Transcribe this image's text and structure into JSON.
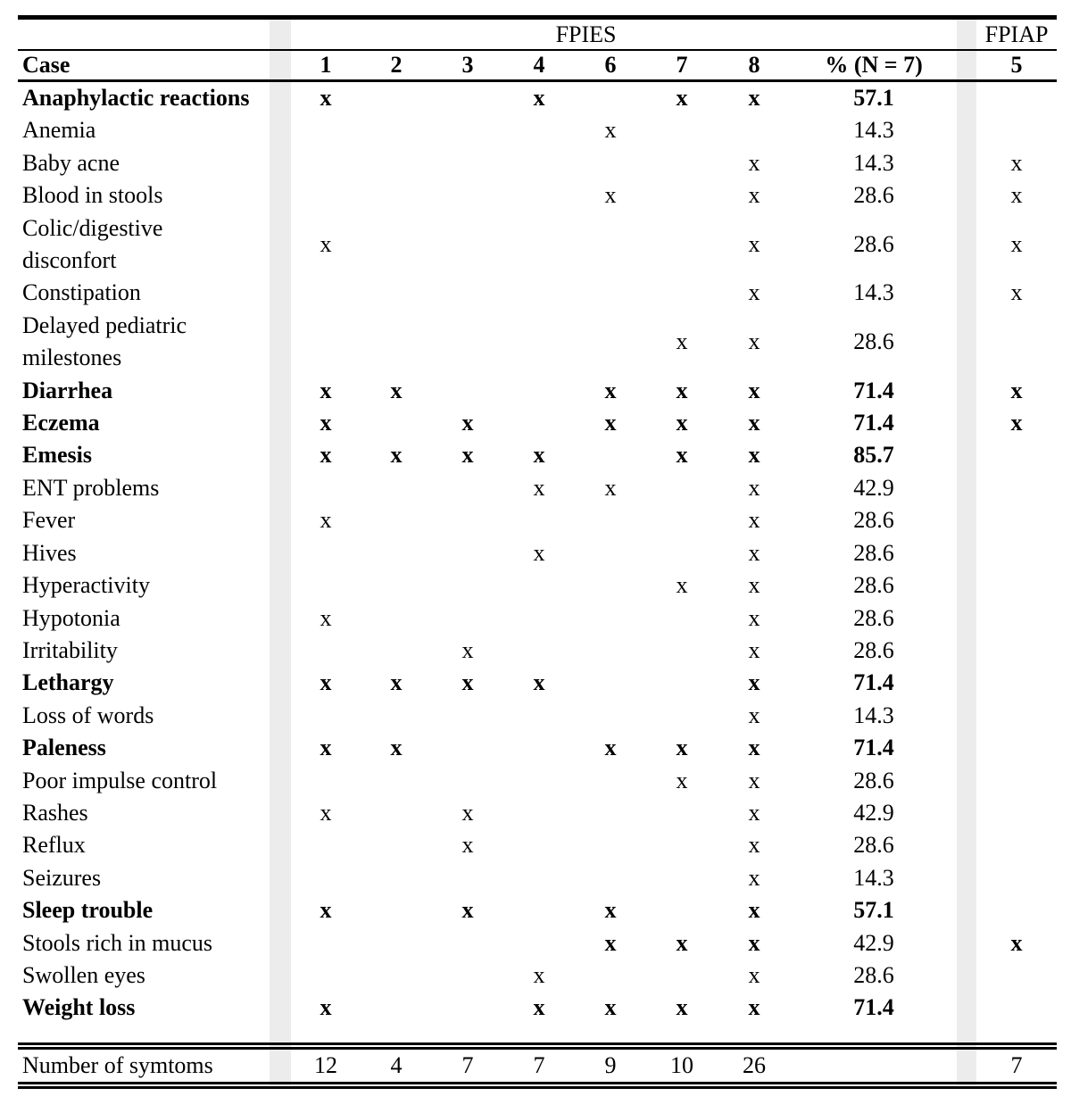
{
  "colors": {
    "band": "#ececec",
    "text": "#000000",
    "background": "#ffffff"
  },
  "table": {
    "group_headers": {
      "fpies": "FPIES",
      "fpiap": "FPIAP"
    },
    "columns": {
      "case_label": "Case",
      "fpies_cases": [
        "1",
        "2",
        "3",
        "4",
        "6",
        "7",
        "8"
      ],
      "percent_label": "% (N = 7)",
      "fpiap_case": "5"
    },
    "rows": [
      {
        "label": "Anaphylactic reactions",
        "bold_label": true,
        "bold_marks": true,
        "bold_percent": true,
        "marks": [
          "x",
          "",
          "",
          "x",
          "",
          "x",
          "x"
        ],
        "percent": "57.1",
        "fpiap": ""
      },
      {
        "label": "Anemia",
        "marks": [
          "",
          "",
          "",
          "",
          "x",
          "",
          ""
        ],
        "percent": "14.3",
        "fpiap": ""
      },
      {
        "label": "Baby acne",
        "marks": [
          "",
          "",
          "",
          "",
          "",
          "",
          "x"
        ],
        "percent": "14.3",
        "fpiap": "x"
      },
      {
        "label": "Blood in stools",
        "marks": [
          "",
          "",
          "",
          "",
          "x",
          "",
          "x"
        ],
        "percent": "28.6",
        "fpiap": "x"
      },
      {
        "label": "Colic/digestive\ndisconfort",
        "marks": [
          "x",
          "",
          "",
          "",
          "",
          "",
          "x"
        ],
        "percent": "28.6",
        "fpiap": "x"
      },
      {
        "label": "Constipation",
        "marks": [
          "",
          "",
          "",
          "",
          "",
          "",
          "x"
        ],
        "percent": "14.3",
        "fpiap": "x"
      },
      {
        "label": "Delayed pediatric\nmilestones",
        "marks": [
          "",
          "",
          "",
          "",
          "",
          "x",
          "x"
        ],
        "percent": "28.6",
        "fpiap": ""
      },
      {
        "label": "Diarrhea",
        "bold_label": true,
        "bold_marks": true,
        "bold_percent": true,
        "bold_fpiap": true,
        "marks": [
          "x",
          "x",
          "",
          "",
          "x",
          "x",
          "x"
        ],
        "percent": "71.4",
        "fpiap": "x"
      },
      {
        "label": "Eczema",
        "bold_label": true,
        "bold_marks": true,
        "bold_percent": true,
        "bold_fpiap": true,
        "marks": [
          "x",
          "",
          "x",
          "",
          "x",
          "x",
          "x"
        ],
        "percent": "71.4",
        "fpiap": "x"
      },
      {
        "label": "Emesis",
        "bold_label": true,
        "bold_marks": true,
        "bold_percent": true,
        "marks": [
          "x",
          "x",
          "x",
          "x",
          "",
          "x",
          "x"
        ],
        "percent": "85.7",
        "fpiap": ""
      },
      {
        "label": "ENT problems",
        "marks": [
          "",
          "",
          "",
          "x",
          "x",
          "",
          "x"
        ],
        "percent": "42.9",
        "fpiap": ""
      },
      {
        "label": "Fever",
        "marks": [
          "x",
          "",
          "",
          "",
          "",
          "",
          "x"
        ],
        "percent": "28.6",
        "fpiap": ""
      },
      {
        "label": "Hives",
        "marks": [
          "",
          "",
          "",
          "x",
          "",
          "",
          "x"
        ],
        "percent": "28.6",
        "fpiap": ""
      },
      {
        "label": "Hyperactivity",
        "marks": [
          "",
          "",
          "",
          "",
          "",
          "x",
          "x"
        ],
        "percent": "28.6",
        "fpiap": ""
      },
      {
        "label": "Hypotonia",
        "marks": [
          "x",
          "",
          "",
          "",
          "",
          "",
          "x"
        ],
        "percent": "28.6",
        "fpiap": ""
      },
      {
        "label": "Irritability",
        "marks": [
          "",
          "",
          "x",
          "",
          "",
          "",
          "x"
        ],
        "percent": "28.6",
        "fpiap": ""
      },
      {
        "label": "Lethargy",
        "bold_label": true,
        "bold_marks": true,
        "bold_percent": true,
        "marks": [
          "x",
          "x",
          "x",
          "x",
          "",
          "",
          "x"
        ],
        "percent": "71.4",
        "fpiap": ""
      },
      {
        "label": "Loss of words",
        "marks": [
          "",
          "",
          "",
          "",
          "",
          "",
          "x"
        ],
        "percent": "14.3",
        "fpiap": ""
      },
      {
        "label": "Paleness",
        "bold_label": true,
        "bold_marks": true,
        "bold_percent": true,
        "marks": [
          "x",
          "x",
          "",
          "",
          "x",
          "x",
          "x"
        ],
        "percent": "71.4",
        "fpiap": ""
      },
      {
        "label": "Poor impulse control",
        "marks": [
          "",
          "",
          "",
          "",
          "",
          "x",
          "x"
        ],
        "percent": "28.6",
        "fpiap": ""
      },
      {
        "label": "Rashes",
        "marks": [
          "x",
          "",
          "x",
          "",
          "",
          "",
          "x"
        ],
        "percent": "42.9",
        "fpiap": ""
      },
      {
        "label": "Reflux",
        "marks": [
          "",
          "",
          "x",
          "",
          "",
          "",
          "x"
        ],
        "percent": "28.6",
        "fpiap": ""
      },
      {
        "label": "Seizures",
        "marks": [
          "",
          "",
          "",
          "",
          "",
          "",
          "x"
        ],
        "percent": "14.3",
        "fpiap": ""
      },
      {
        "label": "Sleep trouble",
        "bold_label": true,
        "bold_marks": true,
        "bold_percent": true,
        "marks": [
          "x",
          "",
          "x",
          "",
          "x",
          "",
          "x"
        ],
        "percent": "57.1",
        "fpiap": ""
      },
      {
        "label": "Stools rich in mucus",
        "bold_marks": true,
        "bold_fpiap": true,
        "marks": [
          "",
          "",
          "",
          "",
          "x",
          "x",
          "x"
        ],
        "percent": "42.9",
        "fpiap": "x"
      },
      {
        "label": "Swollen eyes",
        "marks": [
          "",
          "",
          "",
          "x",
          "",
          "",
          "x"
        ],
        "percent": "28.6",
        "fpiap": ""
      },
      {
        "label": "Weight loss",
        "bold_label": true,
        "bold_marks": true,
        "bold_percent": true,
        "marks": [
          "x",
          "",
          "",
          "x",
          "x",
          "x",
          "x"
        ],
        "percent": "71.4",
        "fpiap": ""
      }
    ],
    "footer": {
      "label": "Number of symtoms",
      "values": [
        "12",
        "4",
        "7",
        "7",
        "9",
        "10",
        "26"
      ],
      "percent": "",
      "fpiap": "7"
    }
  }
}
